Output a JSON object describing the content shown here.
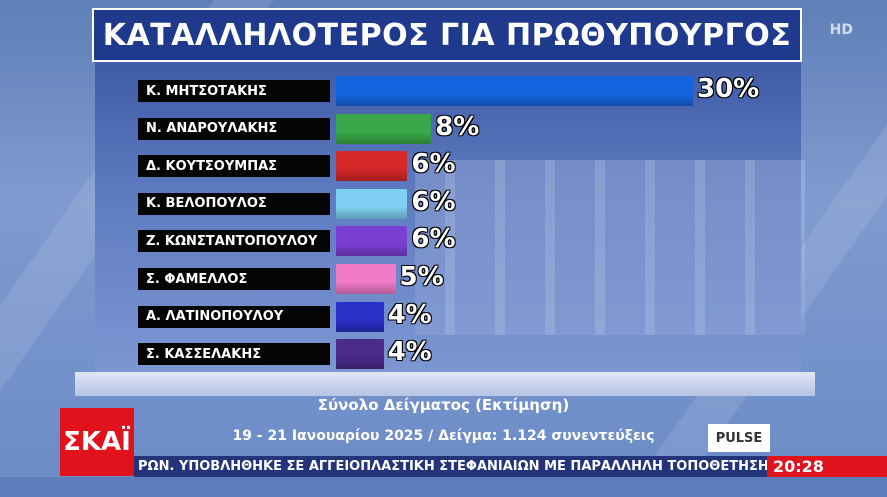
{
  "title": "ΚΑΤΑΛΛΗΛΟΤΕΡΟΣ ΓΙΑ ΠΡΩΘΥΠΟΥΡΓΟΣ",
  "hd_badge": "HD",
  "subtitle": "Σύνολο Δείγματος (Εκτίμηση)",
  "sample_info": "19 - 21 Ιανουαρίου 2025 / Δείγμα: 1.124 συνεντεύξεις",
  "channel_logo": "ΣΚΑΪ",
  "pollster_logo": "PULSE",
  "ticker": "ΡΩΝ.   ΥΠΟΒΛΗΘΗΚΕ ΣΕ ΑΓΓΕΙΟΠΛΑΣΤΙΚΗ ΣΤΕΦΑΝΙΑΙΩΝ ΜΕ ΠΑΡΑΛΛΗΛΗ ΤΟΠΟΘΕΤΗΣΗ ΣΥΣΚ",
  "clock": "20:28",
  "chart_data": {
    "type": "bar",
    "orientation": "horizontal",
    "title": "ΚΑΤΑΛΛΗΛΟΤΕΡΟΣ ΓΙΑ ΠΡΩΘΥΠΟΥΡΓΟΣ",
    "categories": [
      "Κ. ΜΗΤΣΟΤΑΚΗΣ",
      "Ν. ΑΝΔΡΟΥΛΑΚΗΣ",
      "Δ. ΚΟΥΤΣΟΥΜΠΑΣ",
      "Κ. ΒΕΛΟΠΟΥΛΟΣ",
      "Ζ. ΚΩΝΣΤΑΝΤΟΠΟΥΛΟΥ",
      "Σ. ΦΑΜΕΛΛΟΣ",
      "Α. ΛΑΤΙΝΟΠΟΥΛΟΥ",
      "Σ. ΚΑΣΣΕΛΑΚΗΣ"
    ],
    "values": [
      30,
      8,
      6,
      6,
      6,
      5,
      4,
      4
    ],
    "value_labels": [
      "30%",
      "8%",
      "6%",
      "6%",
      "6%",
      "5%",
      "4%",
      "4%"
    ],
    "colors": [
      "#1565e0",
      "#3aa84a",
      "#d62828",
      "#7fd0f2",
      "#7a3fd1",
      "#f07ac8",
      "#2a2fc8",
      "#4a2a8a"
    ],
    "unit": "%"
  }
}
